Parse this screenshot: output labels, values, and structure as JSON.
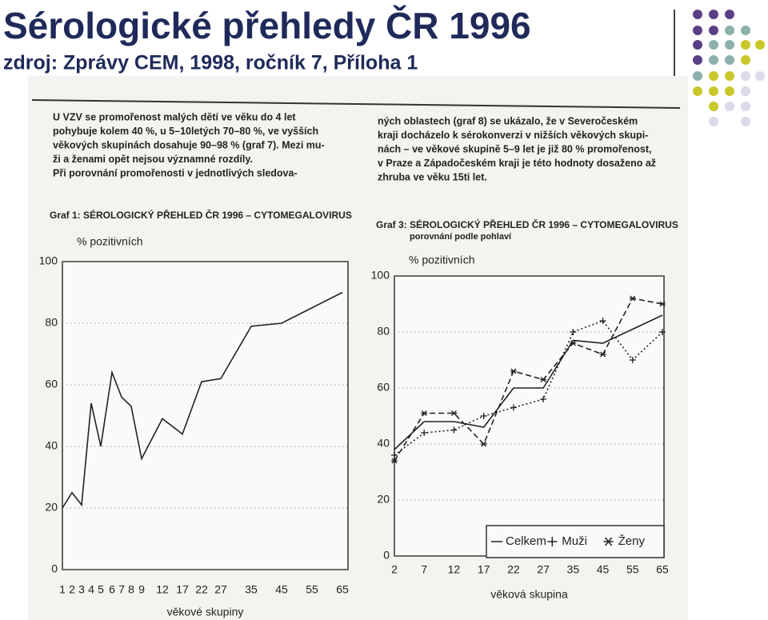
{
  "title": "Sérologické přehledy ČR 1996",
  "subtitle": "zdroj: Zprávy  CEM,  1998, ročník 7, Příloha 1",
  "text": {
    "left": [
      "U VZV se promořenost malých dětí ve věku do 4 let",
      "pohybuje kolem 40 %, u 5–10letých 70–80 %, ve vyšších",
      "věkových skupinách dosahuje 90–98 % (graf 7). Mezi mu-",
      "ži a ženami opět nejsou významné rozdíly.",
      "Při porovnání promořenosti v jednotlivých sledova-"
    ],
    "right": [
      "ných oblastech (graf 8) se ukázalo, že v Severočeském",
      "kraji docházelo k sérokonverzi v nižších věkových skupi-",
      "nách – ve věkové skupině 5–9 let je již 80 % promořenost,",
      "v Praze a Západočeském kraji je této hodnoty dosaženo až",
      "zhruba ve věku 15ti let."
    ]
  },
  "chart_data": [
    {
      "type": "line",
      "title": "Graf 1: SÉROLOGICKÝ PŘEHLED ČR 1996 – CYTOMEGALOVIRUS",
      "y_label": "% pozitivních",
      "x_label": "věkové skupiny",
      "categories": [
        "1",
        "2",
        "3",
        "4",
        "5",
        "6",
        "7",
        "8",
        "9",
        "12",
        "17",
        "22",
        "27",
        "35",
        "45",
        "55",
        "65"
      ],
      "series": [
        {
          "name": null,
          "color": "#222222",
          "dash": "solid",
          "marker": "none",
          "values": [
            20,
            25,
            21,
            54,
            40,
            64,
            56,
            53,
            36,
            49,
            44,
            61,
            62,
            79,
            80,
            85,
            90
          ]
        }
      ],
      "ylim": [
        0,
        100
      ],
      "yticks": [
        0,
        20,
        40,
        60,
        80,
        100
      ],
      "grid": true
    },
    {
      "type": "line",
      "title": "Graf 3: SÉROLOGICKÝ PŘEHLED ČR 1996 – CYTOMEGALOVIRUS",
      "subtitle": "porovnání podle pohlaví",
      "y_label": "% pozitivních",
      "x_label": "věková skupina",
      "categories": [
        "2",
        "7",
        "12",
        "17",
        "22",
        "27",
        "35",
        "45",
        "55",
        "65"
      ],
      "series": [
        {
          "name": "Celkem",
          "color": "#222222",
          "dash": "solid",
          "marker": "none",
          "values": [
            38,
            48,
            48,
            46,
            60,
            60,
            77,
            76,
            81,
            86
          ]
        },
        {
          "name": "Muži",
          "color": "#222222",
          "dash": "dotted",
          "marker": "plus",
          "values": [
            36,
            44,
            45,
            50,
            53,
            56,
            80,
            84,
            70,
            80
          ]
        },
        {
          "name": "Ženy",
          "color": "#222222",
          "dash": "dashed",
          "marker": "star",
          "values": [
            34,
            51,
            51,
            40,
            66,
            63,
            76,
            72,
            92,
            90
          ]
        }
      ],
      "ylim": [
        0,
        100
      ],
      "yticks": [
        0,
        20,
        40,
        60,
        80,
        100
      ],
      "grid": true
    }
  ]
}
